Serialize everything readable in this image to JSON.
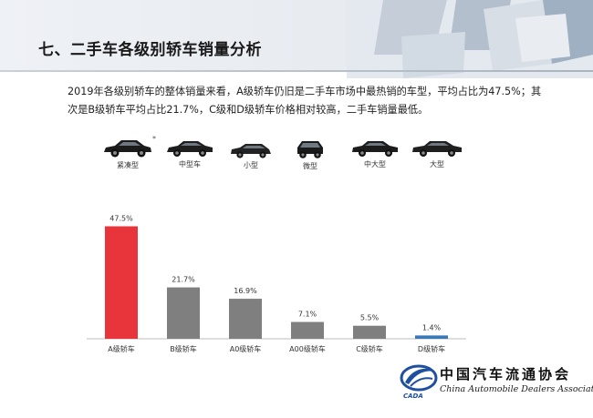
{
  "title": "七、二手车各级别轿车销量分析",
  "summary": "2019年各级别轿车的整体销量来看，A级轿车仍旧是二手车市场中最热销的车型，平均占比为47.5%；其次是B级轿车平均占比21.7%，C级和D级轿车价格相对较高，二手车销量最低。",
  "car_types": [
    {
      "label": "紧凑型",
      "icon": "compact-sedan-icon"
    },
    {
      "label": "中型车",
      "icon": "midsize-sedan-icon"
    },
    {
      "label": "小型",
      "icon": "small-hatchback-icon"
    },
    {
      "label": "微型",
      "icon": "micro-car-icon"
    },
    {
      "label": "中大型",
      "icon": "large-sedan-icon"
    },
    {
      "label": "大型",
      "icon": "full-size-sedan-icon"
    }
  ],
  "asterisk": "*",
  "colors": {
    "highlight": "#e8353b",
    "default": "#7f7f7f",
    "last": "#3a78b6",
    "axis": "#bdbdbd"
  },
  "chart_data": {
    "type": "bar",
    "categories": [
      "A级轿车",
      "B级轿车",
      "A0级轿车",
      "A00级轿车",
      "C级轿车",
      "D级轿车"
    ],
    "values": [
      47.5,
      21.7,
      16.9,
      7.1,
      5.5,
      1.4
    ],
    "value_labels": [
      "47.5%",
      "21.7%",
      "16.9%",
      "7.1%",
      "5.5%",
      "1.4%"
    ],
    "ylim": [
      0,
      50
    ],
    "grid": false,
    "legend": "none"
  },
  "logo": {
    "cn": "中国汽车流通协会",
    "en": "China Automobile Dealers Association",
    "abbr": "CADA"
  }
}
